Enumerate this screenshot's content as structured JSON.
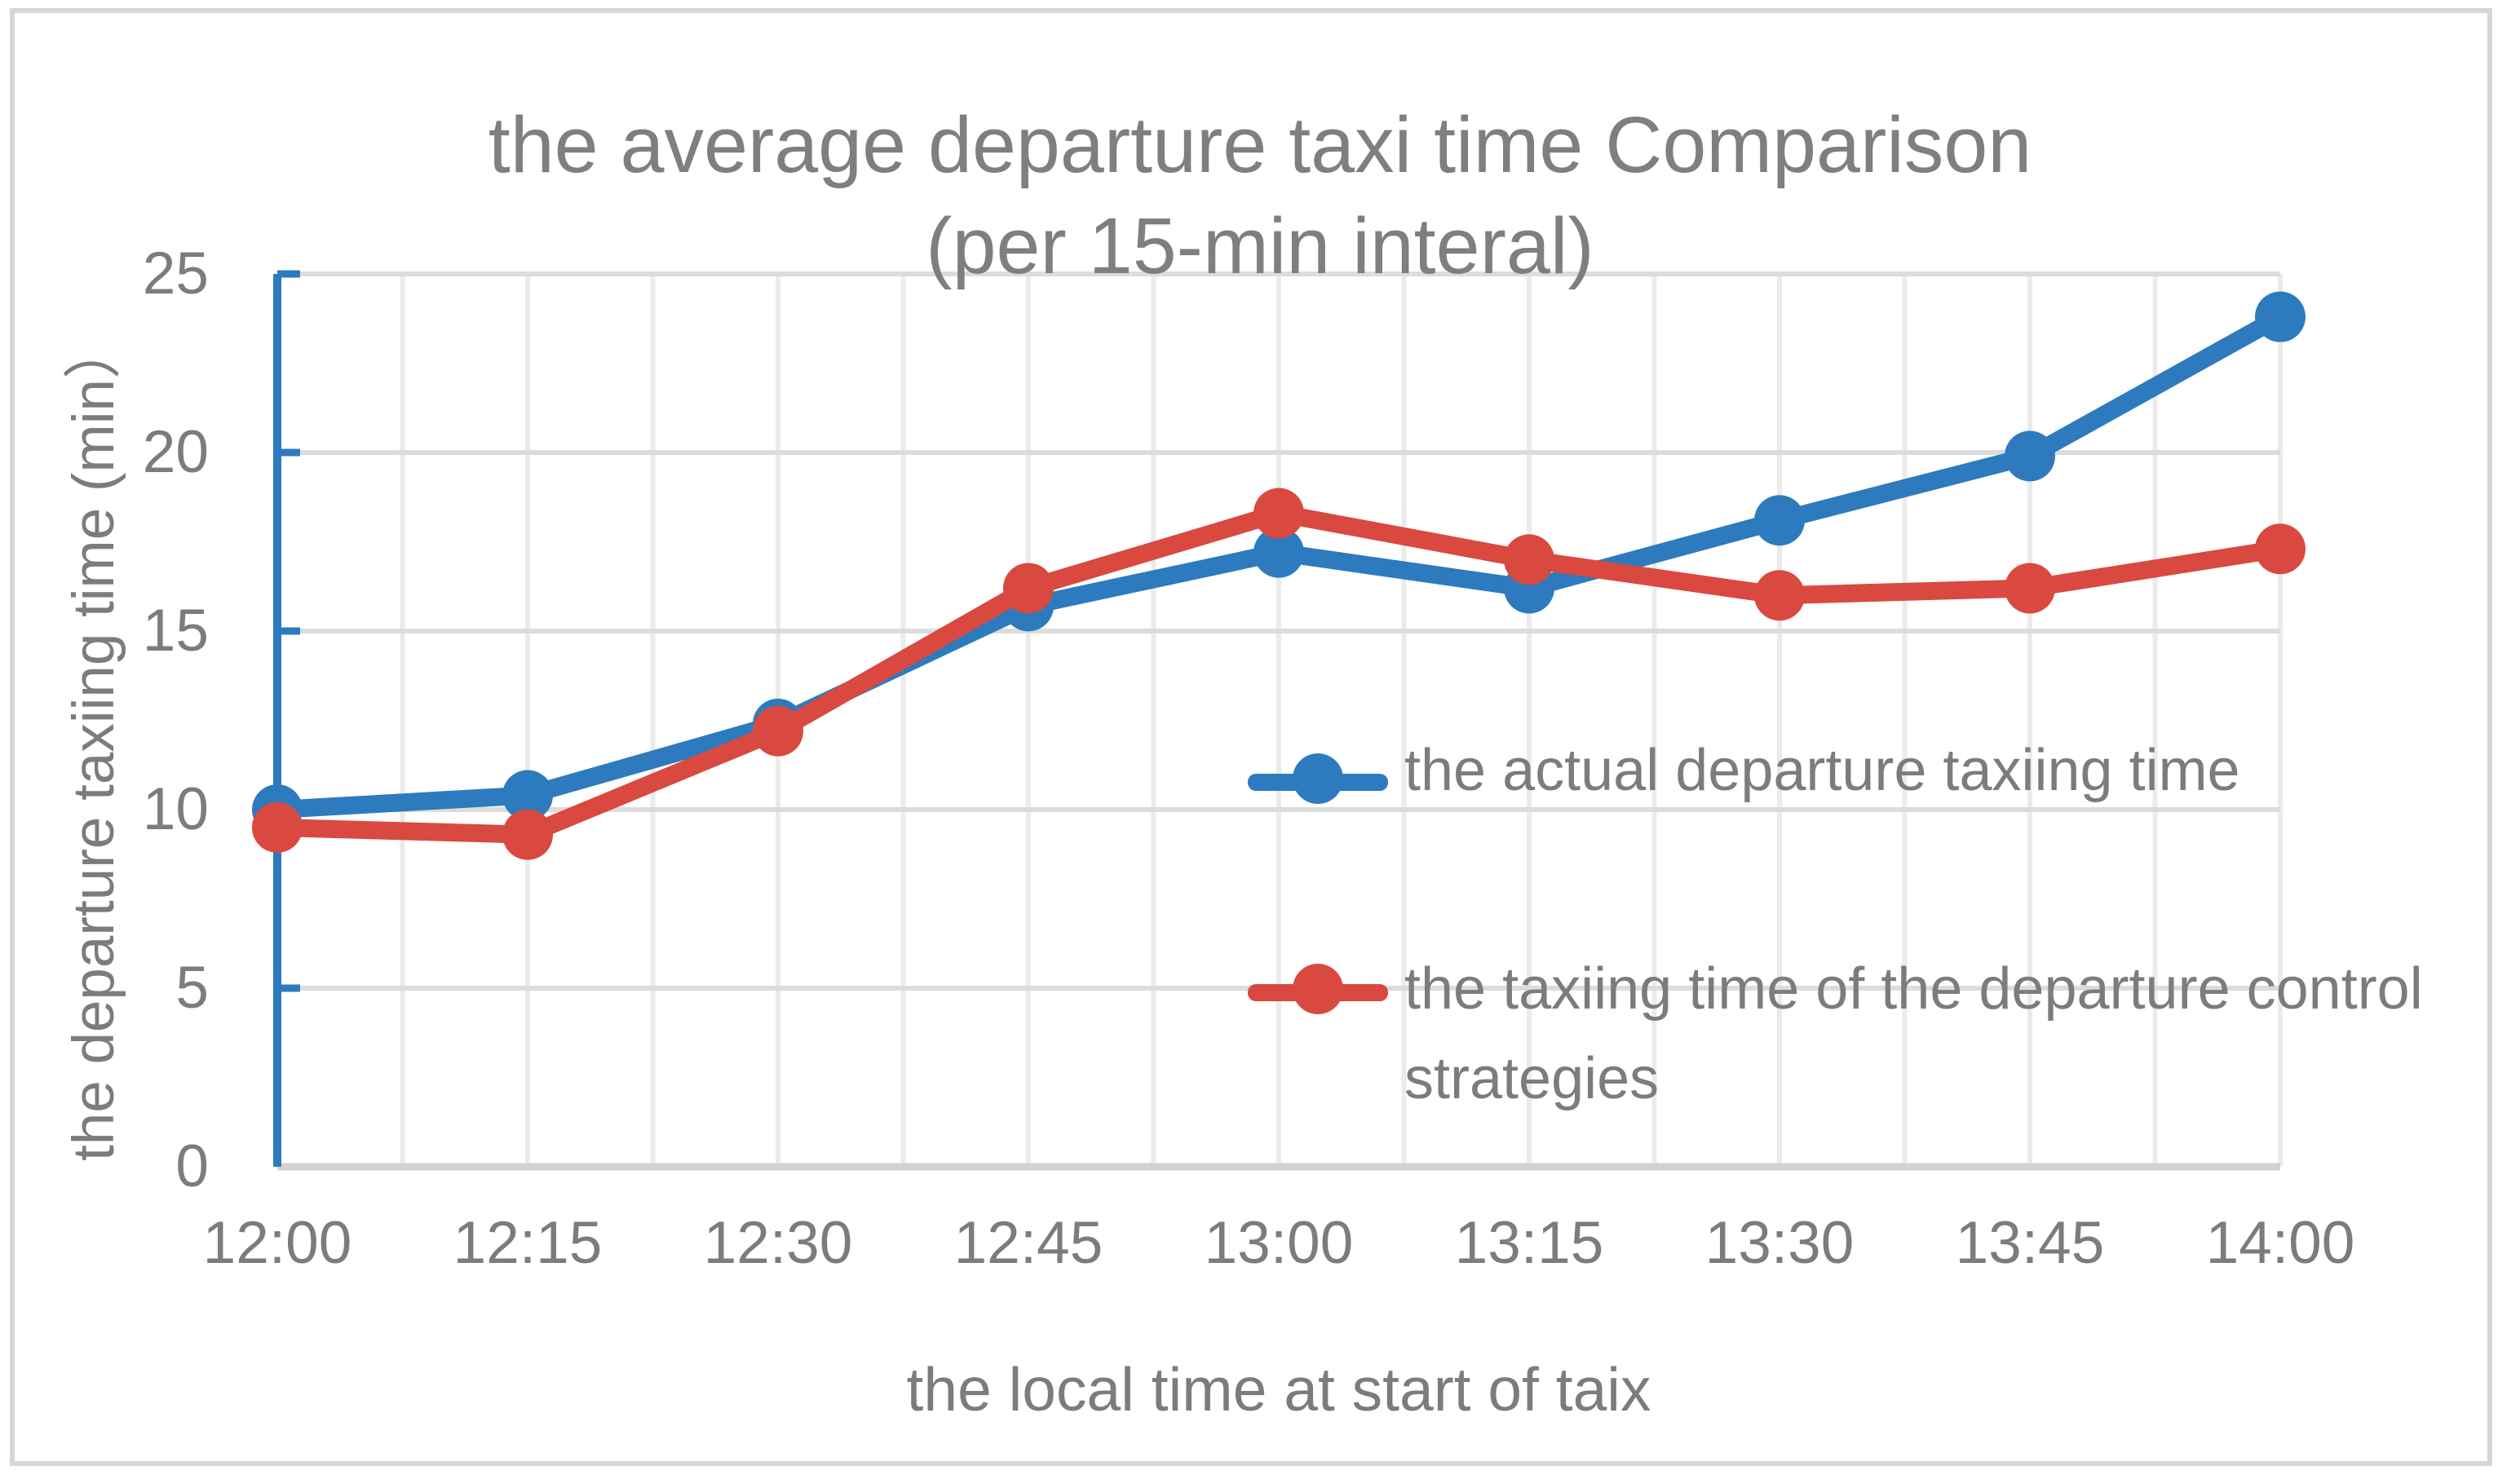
{
  "title": {
    "line1": "the average departure taxi time Comparison",
    "line2": "(per 15-min interal)"
  },
  "axes": {
    "y_title": "the departure taxiing time (min）",
    "x_title": "the local time at start of taix",
    "y_ticks": [
      "25",
      "20",
      "15",
      "10",
      "5",
      "0"
    ]
  },
  "legend": [
    {
      "label": "the actual departure taxiing time",
      "color": "#2d7bbe"
    },
    {
      "label": "the taxiing time of the departure control strategies",
      "color": "#d94940"
    }
  ],
  "colors": {
    "series_actual": "#2d7bbe",
    "series_control": "#d94940",
    "y_axis": "#2d7bbe",
    "gridline_h": "#dcdcdc",
    "gridline_v": "#ebebeb",
    "x_axis": "#d2d2d2",
    "text": "#7c7c7c",
    "border": "#d6d6d6"
  },
  "chart_data": {
    "type": "line",
    "categories": [
      "12:00",
      "12:15",
      "12:30",
      "12:45",
      "13:00",
      "13:15",
      "13:30",
      "13:45",
      "14:00"
    ],
    "series": [
      {
        "name": "the actual departure taxiing time",
        "color": "#2d7bbe",
        "values": [
          10.0,
          10.4,
          12.4,
          15.7,
          17.2,
          16.2,
          18.1,
          19.9,
          23.8
        ]
      },
      {
        "name": "the taxiing time of the departure control strategies",
        "color": "#d94940",
        "values": [
          9.5,
          9.3,
          12.2,
          16.2,
          18.3,
          17.0,
          16.0,
          16.2,
          17.3
        ]
      }
    ],
    "title": "the average departure taxi time Comparison (per 15-min interal)",
    "xlabel": "the local time at start of taix",
    "ylabel": "the departure taxiing time (min）",
    "ylim": [
      0,
      25
    ],
    "ytick_step": 5,
    "grid": true,
    "legend_position": "inside-right"
  }
}
